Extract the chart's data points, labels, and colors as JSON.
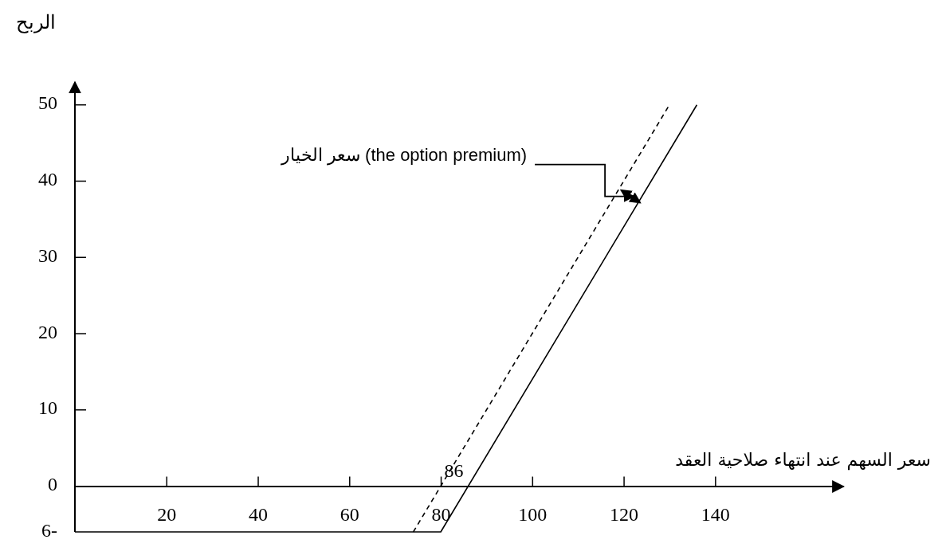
{
  "chart_data": {
    "type": "line",
    "xlabel": "سعر السهم عند انتهاء صلاحية العقد",
    "ylabel": "الربح",
    "xlim": [
      0,
      168
    ],
    "ylim": [
      -6,
      53
    ],
    "xticks": [
      20,
      40,
      60,
      80,
      100,
      120,
      140
    ],
    "yticks": [
      {
        "value": -6,
        "label": "6-"
      },
      0,
      10,
      20,
      30,
      40,
      50
    ],
    "series": [
      {
        "color": "#000000",
        "line_style": "solid",
        "x": [
          0,
          80,
          136
        ],
        "values": [
          -6,
          -6,
          50
        ]
      },
      {
        "color": "#000000",
        "line_style": "dashed",
        "x": [
          74,
          130
        ],
        "values": [
          -6,
          50
        ]
      }
    ],
    "annotations": [
      {
        "text": "86",
        "x": 86,
        "y": 0
      },
      "سعر الخيار (the option premium)"
    ],
    "marker": "none"
  }
}
